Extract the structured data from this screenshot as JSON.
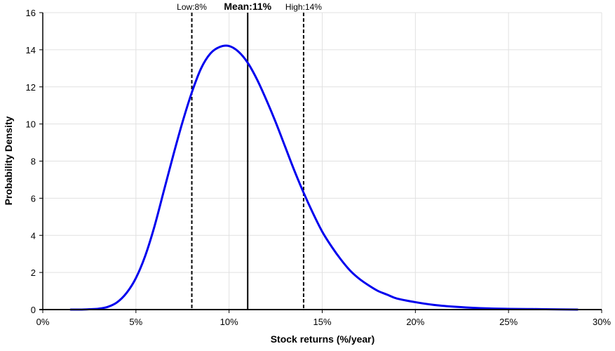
{
  "chart_data": {
    "type": "line",
    "title": "",
    "xlabel": "Stock returns (%/year)",
    "ylabel": "Probability Density",
    "xlim": [
      0,
      30
    ],
    "ylim": [
      0,
      16
    ],
    "x_ticks": [
      0,
      5,
      10,
      15,
      20,
      25,
      30
    ],
    "x_tick_labels": [
      "0%",
      "5%",
      "10%",
      "15%",
      "20%",
      "25%",
      "30%"
    ],
    "y_ticks": [
      0,
      2,
      4,
      6,
      8,
      10,
      12,
      14,
      16
    ],
    "y_tick_labels": [
      "0",
      "2",
      "4",
      "6",
      "8",
      "10",
      "12",
      "14",
      "16"
    ],
    "grid": true,
    "series": [
      {
        "color": "#0000ee",
        "x": [
          1.5,
          2.0,
          2.5,
          3.0,
          3.5,
          4.0,
          4.5,
          5.0,
          5.5,
          6.0,
          6.5,
          7.0,
          7.5,
          8.0,
          8.5,
          9.0,
          9.5,
          10.0,
          10.5,
          11.0,
          11.5,
          12.0,
          12.5,
          13.0,
          13.5,
          14.0,
          14.5,
          15.0,
          15.5,
          16.0,
          16.5,
          17.0,
          17.5,
          18.0,
          18.5,
          19.0,
          20.0,
          21.0,
          22.0,
          23.0,
          24.0,
          25.0,
          26.0,
          27.0,
          28.7
        ],
        "y": [
          0.0,
          0.0,
          0.02,
          0.05,
          0.15,
          0.4,
          0.9,
          1.7,
          2.9,
          4.5,
          6.4,
          8.3,
          10.1,
          11.7,
          13.0,
          13.8,
          14.15,
          14.2,
          13.9,
          13.3,
          12.4,
          11.3,
          10.1,
          8.8,
          7.5,
          6.3,
          5.2,
          4.2,
          3.4,
          2.7,
          2.1,
          1.65,
          1.3,
          1.0,
          0.8,
          0.6,
          0.4,
          0.25,
          0.16,
          0.1,
          0.06,
          0.04,
          0.03,
          0.02,
          0.0
        ]
      }
    ],
    "markers": [
      {
        "x": 8,
        "prefix": "Low:",
        "value": "8%",
        "style": "dashed"
      },
      {
        "x": 11,
        "prefix": "Mean:",
        "value": "11%",
        "style": "solid"
      },
      {
        "x": 14,
        "prefix": "High:",
        "value": "14%",
        "style": "dashed"
      }
    ],
    "colors": {
      "curve": "#0000ee",
      "grid": "#e1e1e1",
      "axis": "#000000",
      "marker": "#000000"
    }
  }
}
